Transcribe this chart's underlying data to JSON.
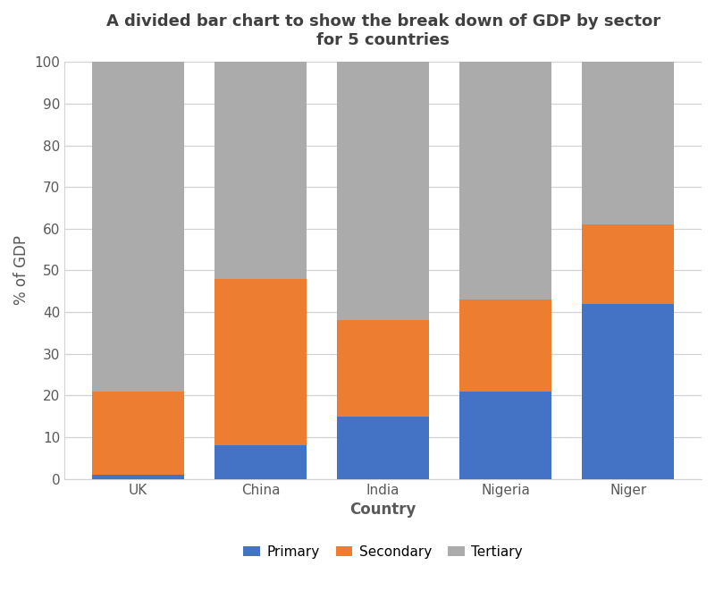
{
  "countries": [
    "UK",
    "China",
    "India",
    "Nigeria",
    "Niger"
  ],
  "primary": [
    1,
    8,
    15,
    21,
    42
  ],
  "secondary": [
    20,
    40,
    23,
    22,
    19
  ],
  "tertiary": [
    79,
    52,
    62,
    57,
    39
  ],
  "colors": {
    "primary": "#4472C4",
    "secondary": "#ED7D31",
    "tertiary": "#ABABAB"
  },
  "title_line1": "A divided bar chart to show the break down of GDP by sector",
  "title_line2": "for 5 countries",
  "xlabel": "Country",
  "ylabel": "% of GDP",
  "ylim": [
    0,
    100
  ],
  "yticks": [
    0,
    10,
    20,
    30,
    40,
    50,
    60,
    70,
    80,
    90,
    100
  ],
  "legend_labels": [
    "Primary",
    "Secondary",
    "Tertiary"
  ],
  "bar_width": 0.75,
  "background_color": "#FFFFFF",
  "grid_color": "#D3D3D3",
  "title_fontsize": 13,
  "axis_label_fontsize": 12,
  "tick_fontsize": 11,
  "legend_fontsize": 11
}
